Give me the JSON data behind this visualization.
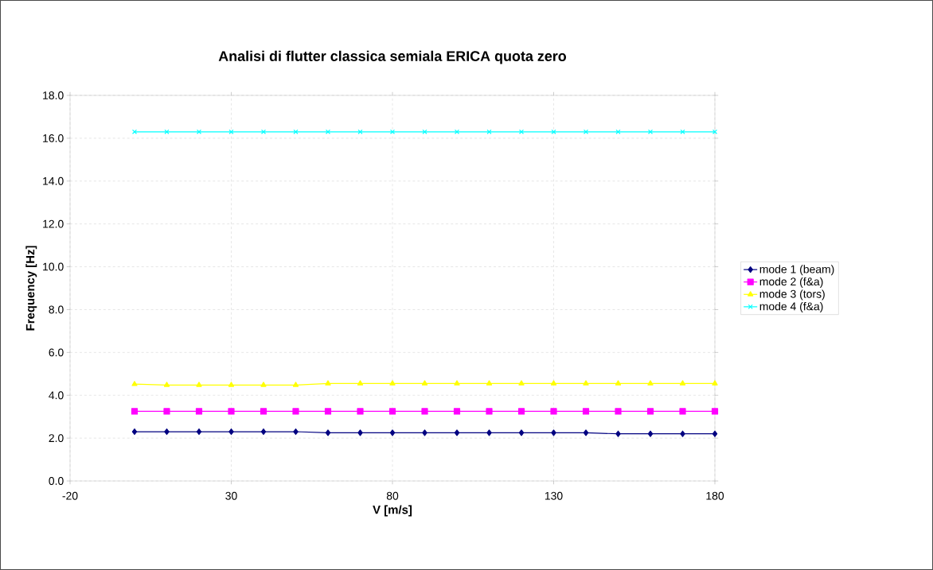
{
  "chart_data": {
    "type": "line",
    "title": "Analisi di flutter classica semiala ERICA quota zero",
    "xlabel": "V [m/s]",
    "ylabel": "Frequency [Hz]",
    "x": [
      0,
      10,
      20,
      30,
      40,
      50,
      60,
      70,
      80,
      90,
      100,
      110,
      120,
      130,
      140,
      150,
      160,
      170,
      180
    ],
    "series": [
      {
        "name": "mode 1 (beam)",
        "color": "#000080",
        "marker": "diamond",
        "values": [
          2.3,
          2.3,
          2.3,
          2.3,
          2.3,
          2.3,
          2.25,
          2.25,
          2.25,
          2.25,
          2.25,
          2.25,
          2.25,
          2.25,
          2.25,
          2.2,
          2.2,
          2.2,
          2.2
        ]
      },
      {
        "name": "mode 2 (f&a)",
        "color": "#ff00ff",
        "marker": "square",
        "values": [
          3.25,
          3.25,
          3.25,
          3.25,
          3.25,
          3.25,
          3.25,
          3.25,
          3.25,
          3.25,
          3.25,
          3.25,
          3.25,
          3.25,
          3.25,
          3.25,
          3.25,
          3.25,
          3.25
        ]
      },
      {
        "name": "mode 3 (tors)",
        "color": "#ffff00",
        "marker": "triangle",
        "values": [
          4.52,
          4.48,
          4.48,
          4.48,
          4.48,
          4.48,
          4.55,
          4.55,
          4.55,
          4.55,
          4.55,
          4.55,
          4.55,
          4.55,
          4.55,
          4.55,
          4.55,
          4.55,
          4.55
        ]
      },
      {
        "name": "mode 4 (f&a)",
        "color": "#00ffff",
        "marker": "cross",
        "values": [
          16.3,
          16.3,
          16.3,
          16.3,
          16.3,
          16.3,
          16.3,
          16.3,
          16.3,
          16.3,
          16.3,
          16.3,
          16.3,
          16.3,
          16.3,
          16.3,
          16.3,
          16.3,
          16.3
        ]
      }
    ],
    "xlim": [
      -20,
      180
    ],
    "xticks": [
      -20,
      30,
      80,
      130,
      180
    ],
    "ylim": [
      0,
      18
    ],
    "yticks": [
      {
        "value": 0,
        "label": "0.0"
      },
      {
        "value": 2,
        "label": "2.0"
      },
      {
        "value": 4,
        "label": "4.0"
      },
      {
        "value": 6,
        "label": "6.0"
      },
      {
        "value": 8,
        "label": "8.0"
      },
      {
        "value": 10,
        "label": "10.0"
      },
      {
        "value": 12,
        "label": "12.0"
      },
      {
        "value": 14,
        "label": "14.0"
      },
      {
        "value": 16,
        "label": "16.0"
      },
      {
        "value": 18,
        "label": "18.0"
      }
    ],
    "grid": true,
    "legend": "right",
    "line_style": "solid"
  }
}
